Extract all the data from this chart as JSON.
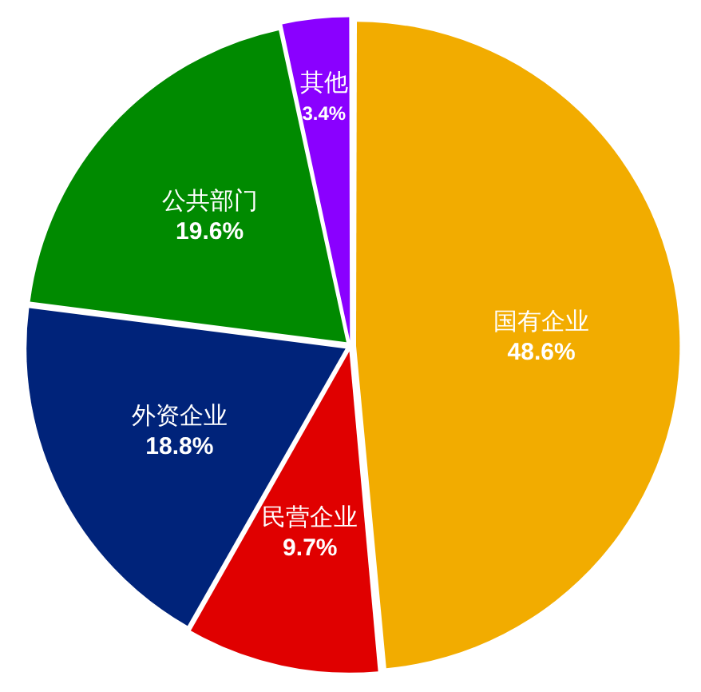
{
  "chart_data": {
    "type": "pie",
    "categories": [
      "国有企业",
      "民营企业",
      "外资企业",
      "公共部门",
      "其他"
    ],
    "values": [
      48.6,
      9.7,
      18.8,
      19.6,
      3.4
    ],
    "colors": [
      "#f2ac00",
      "#e00000",
      "#00237a",
      "#008a00",
      "#8a00ff"
    ],
    "value_labels": [
      "48.6%",
      "9.7%",
      "18.8%",
      "19.6%",
      "3.4%"
    ],
    "legend": false
  }
}
